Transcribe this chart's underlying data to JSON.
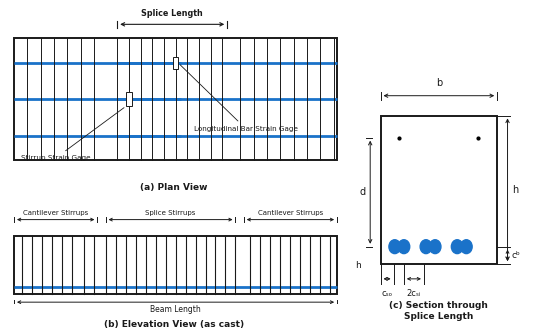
{
  "bg_color": "#ffffff",
  "line_color": "#1a1a1a",
  "blue_color": "#1a72c9",
  "title_a": "(a) Plan View",
  "title_b": "(b) Elevation View (as cast)",
  "title_c": "(c) Section through\nSplice Length",
  "label_splice": "Splice Length",
  "label_stirrup_gage": "Stirrup Strain Gage",
  "label_long_gage": "Longitudinal Bar Strain Gage",
  "label_cantilever": "Cantilever Stirrups",
  "label_splice_stirrups": "Splice Stirrups",
  "label_beam_length": "Beam Length",
  "label_b": "b",
  "label_d": "d",
  "label_h": "h",
  "label_cb": "cᵇ",
  "label_cso": "cₛₒ",
  "label_csi": "2cₛᵢ"
}
